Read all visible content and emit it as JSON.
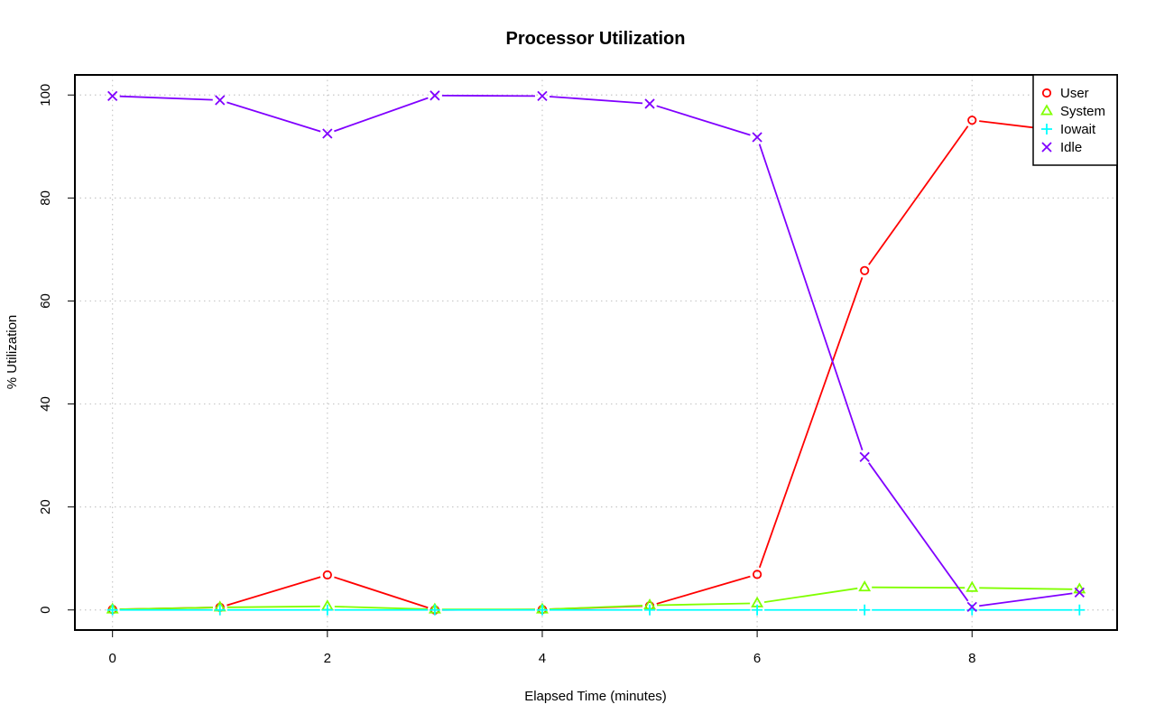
{
  "chart_data": {
    "type": "line",
    "title": "Processor Utilization",
    "xlabel": "Elapsed Time (minutes)",
    "ylabel": "% Utilization",
    "x": [
      0,
      1,
      2,
      3,
      4,
      5,
      6,
      7,
      8,
      9
    ],
    "xlim": [
      -0.35,
      9.35
    ],
    "ylim": [
      -3.9,
      103.9
    ],
    "xticks": [
      0,
      2,
      4,
      6,
      8
    ],
    "yticks": [
      0,
      20,
      40,
      60,
      80,
      100
    ],
    "grid": true,
    "legend_position": "top-right",
    "series": [
      {
        "name": "User",
        "color": "#ff0000",
        "marker": "circle",
        "values": [
          0.1,
          0.5,
          6.8,
          0.0,
          0.1,
          0.8,
          6.9,
          65.9,
          95.1,
          92.6
        ]
      },
      {
        "name": "System",
        "color": "#80ff00",
        "marker": "triangle",
        "values": [
          0.1,
          0.5,
          0.7,
          0.1,
          0.1,
          0.9,
          1.3,
          4.4,
          4.3,
          4.0
        ]
      },
      {
        "name": "Iowait",
        "color": "#00ffff",
        "marker": "plus",
        "values": [
          0.0,
          0.0,
          0.0,
          0.0,
          0.0,
          0.0,
          0.0,
          0.0,
          0.0,
          0.0
        ]
      },
      {
        "name": "Idle",
        "color": "#8000ff",
        "marker": "cross",
        "values": [
          99.8,
          99.0,
          92.5,
          99.9,
          99.8,
          98.3,
          91.8,
          29.7,
          0.6,
          3.4
        ]
      }
    ]
  }
}
